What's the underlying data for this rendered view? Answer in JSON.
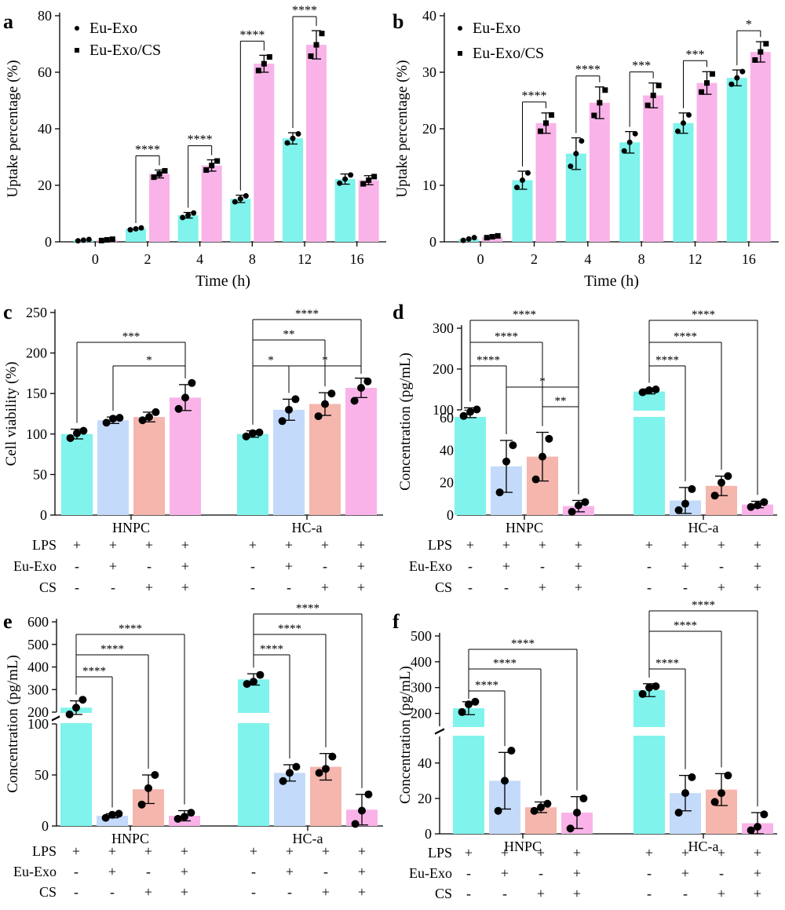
{
  "colors": {
    "cyan": "#7ff3ec",
    "pink": "#f9b3e8",
    "blue": "#c4dafa",
    "salmon": "#f4b6ad"
  },
  "treatment_rows": {
    "labels": [
      "LPS",
      "Eu-Exo",
      "CS"
    ],
    "signs": [
      [
        "+",
        "+",
        "+",
        "+"
      ],
      [
        "-",
        "+",
        "-",
        "+"
      ],
      [
        "-",
        "-",
        "+",
        "+"
      ]
    ]
  },
  "chart_data": [
    {
      "panel": "a",
      "type": "bar",
      "ylabel": "Uptake percentage (%)",
      "xlabel": "Time (h)",
      "ylim": [
        0,
        80
      ],
      "yticks": [
        0,
        20,
        40,
        60,
        80
      ],
      "categories": [
        "0",
        "2",
        "4",
        "8",
        "12",
        "16"
      ],
      "legend": [
        "Eu-Exo",
        "Eu-Exo/CS"
      ],
      "legend_position": "top-left",
      "series": [
        {
          "name": "Eu-Exo",
          "color": "#7ff3ec",
          "values": [
            0.6,
            4.6,
            9.4,
            15.2,
            36.6,
            22.2
          ],
          "err": [
            0.3,
            0.4,
            1.0,
            1.3,
            2.0,
            1.8
          ]
        },
        {
          "name": "Eu-Exo/CS",
          "color": "#f9b3e8",
          "values": [
            0.7,
            24.0,
            27.0,
            63.0,
            69.7,
            21.8
          ],
          "err": [
            0.3,
            1.4,
            2.0,
            3.0,
            5.0,
            1.6
          ]
        }
      ],
      "significance": [
        {
          "a": [
            1,
            0
          ],
          "b": [
            1,
            1
          ],
          "label": "****"
        },
        {
          "a": [
            2,
            0
          ],
          "b": [
            2,
            1
          ],
          "label": "****"
        },
        {
          "a": [
            3,
            0
          ],
          "b": [
            3,
            1
          ],
          "label": "****"
        },
        {
          "a": [
            4,
            0
          ],
          "b": [
            4,
            1
          ],
          "label": "****"
        }
      ]
    },
    {
      "panel": "b",
      "type": "bar",
      "ylabel": "Uptake percentage (%)",
      "xlabel": "Time (h)",
      "ylim": [
        0,
        40
      ],
      "yticks": [
        0,
        10,
        20,
        30,
        40
      ],
      "categories": [
        "0",
        "2",
        "4",
        "8",
        "12",
        "16"
      ],
      "legend": [
        "Eu-Exo",
        "Eu-Exo/CS"
      ],
      "legend_position": "top-left",
      "series": [
        {
          "name": "Eu-Exo",
          "color": "#7ff3ec",
          "values": [
            0.5,
            10.9,
            15.6,
            17.6,
            21.0,
            29.0
          ],
          "err": [
            0.3,
            1.6,
            2.8,
            1.9,
            1.8,
            1.4
          ]
        },
        {
          "name": "Eu-Exo/CS",
          "color": "#f9b3e8",
          "values": [
            0.9,
            21.0,
            24.6,
            25.9,
            28.1,
            33.6
          ],
          "err": [
            0.2,
            1.8,
            2.8,
            2.2,
            2.0,
            1.8
          ]
        }
      ],
      "significance": [
        {
          "a": [
            1,
            0
          ],
          "b": [
            1,
            1
          ],
          "label": "****"
        },
        {
          "a": [
            2,
            0
          ],
          "b": [
            2,
            1
          ],
          "label": "****"
        },
        {
          "a": [
            3,
            0
          ],
          "b": [
            3,
            1
          ],
          "label": "***"
        },
        {
          "a": [
            4,
            0
          ],
          "b": [
            4,
            1
          ],
          "label": "***"
        },
        {
          "a": [
            5,
            0
          ],
          "b": [
            5,
            1
          ],
          "label": "*"
        }
      ]
    },
    {
      "panel": "c",
      "type": "bar",
      "ylabel": "Cell viability (%)",
      "ylim": [
        0,
        250
      ],
      "yticks": [
        0,
        50,
        100,
        150,
        200,
        250
      ],
      "groups": [
        "HNPC",
        "HC-a"
      ],
      "bar_colors": [
        "#7ff3ec",
        "#c4dafa",
        "#f4b6ad",
        "#f9b3e8"
      ],
      "values": [
        [
          100,
          117,
          121,
          145
        ],
        [
          100,
          130,
          137,
          157
        ]
      ],
      "err": [
        [
          6,
          4,
          6,
          16
        ],
        [
          4,
          13,
          14,
          12
        ]
      ],
      "points": [
        [
          [
            95,
            101,
            104
          ],
          [
            114,
            119,
            120
          ],
          [
            117,
            121,
            127
          ],
          [
            131,
            145,
            163
          ]
        ],
        [
          [
            97,
            101,
            102
          ],
          [
            116,
            130,
            143
          ],
          [
            122,
            137,
            150
          ],
          [
            141,
            157,
            165
          ]
        ]
      ],
      "significance": [
        {
          "a": [
            0,
            0
          ],
          "b": [
            0,
            3
          ],
          "label": "***"
        },
        {
          "a": [
            0,
            1
          ],
          "b": [
            0,
            3
          ],
          "label": "*"
        },
        {
          "a": [
            1,
            0
          ],
          "b": [
            1,
            3
          ],
          "label": "****"
        },
        {
          "a": [
            1,
            0
          ],
          "b": [
            1,
            2
          ],
          "label": "**"
        },
        {
          "a": [
            1,
            0
          ],
          "b": [
            1,
            1
          ],
          "label": "*"
        },
        {
          "a": [
            1,
            1
          ],
          "b": [
            1,
            3
          ],
          "label": "*"
        }
      ]
    },
    {
      "panel": "d",
      "type": "bar",
      "ylabel": "Concentration (pg/mL)",
      "broken_axis": true,
      "ylim_low": [
        0,
        60
      ],
      "yticks_low": [
        0,
        20,
        40,
        60
      ],
      "ylim_high": [
        100,
        300
      ],
      "yticks_high": [
        100,
        200,
        300
      ],
      "groups": [
        "HNPC",
        "HC-a"
      ],
      "bar_colors": [
        "#7ff3ec",
        "#c4dafa",
        "#f4b6ad",
        "#f9b3e8"
      ],
      "values": [
        [
          93,
          30,
          36,
          5.5
        ],
        [
          145,
          9,
          18,
          6.5
        ]
      ],
      "err": [
        [
          12,
          16,
          15,
          3.5
        ],
        [
          6,
          8,
          6,
          2
        ]
      ],
      "points": [
        [
          [
            85,
            95,
            101
          ],
          [
            14,
            33,
            43
          ],
          [
            22,
            36,
            47
          ],
          [
            2,
            6,
            8
          ]
        ],
        [
          [
            143,
            148,
            150
          ],
          [
            3,
            7,
            16
          ],
          [
            12,
            20,
            24
          ],
          [
            5,
            6,
            8
          ]
        ]
      ],
      "significance": [
        {
          "a": [
            0,
            0
          ],
          "b": [
            0,
            3
          ],
          "label": "****"
        },
        {
          "a": [
            0,
            0
          ],
          "b": [
            0,
            2
          ],
          "label": "****"
        },
        {
          "a": [
            0,
            0
          ],
          "b": [
            0,
            1
          ],
          "label": "****"
        },
        {
          "a": [
            0,
            1
          ],
          "b": [
            0,
            3
          ],
          "label": "*"
        },
        {
          "a": [
            0,
            2
          ],
          "b": [
            0,
            3
          ],
          "label": "**"
        },
        {
          "a": [
            1,
            0
          ],
          "b": [
            1,
            3
          ],
          "label": "****"
        },
        {
          "a": [
            1,
            0
          ],
          "b": [
            1,
            2
          ],
          "label": "****"
        },
        {
          "a": [
            1,
            0
          ],
          "b": [
            1,
            1
          ],
          "label": "****"
        }
      ]
    },
    {
      "panel": "e",
      "type": "bar",
      "ylabel": "Concentration (pg/mL)",
      "broken_axis": true,
      "ylim_low": [
        0,
        100
      ],
      "yticks_low": [
        0,
        50,
        100
      ],
      "ylim_high": [
        200,
        600
      ],
      "yticks_high": [
        200,
        300,
        400,
        500,
        600
      ],
      "groups": [
        "HNPC",
        "HC-a"
      ],
      "bar_colors": [
        "#7ff3ec",
        "#c4dafa",
        "#f4b6ad",
        "#f9b3e8"
      ],
      "values": [
        [
          220,
          10,
          36,
          10
        ],
        [
          345,
          52,
          58,
          16
        ]
      ],
      "err": [
        [
          30,
          2,
          14,
          5
        ],
        [
          25,
          8,
          13,
          15
        ]
      ],
      "points": [
        [
          [
            190,
            220,
            255
          ],
          [
            8,
            11,
            12
          ],
          [
            21,
            37,
            50
          ],
          [
            7,
            9,
            13
          ]
        ],
        [
          [
            325,
            335,
            365
          ],
          [
            44,
            52,
            58
          ],
          [
            52,
            56,
            68
          ],
          [
            2,
            15,
            31
          ]
        ]
      ],
      "significance": [
        {
          "a": [
            0,
            0
          ],
          "b": [
            0,
            3
          ],
          "label": "****"
        },
        {
          "a": [
            0,
            0
          ],
          "b": [
            0,
            2
          ],
          "label": "****"
        },
        {
          "a": [
            0,
            0
          ],
          "b": [
            0,
            1
          ],
          "label": "****"
        },
        {
          "a": [
            1,
            0
          ],
          "b": [
            1,
            3
          ],
          "label": "****"
        },
        {
          "a": [
            1,
            0
          ],
          "b": [
            1,
            2
          ],
          "label": "****"
        },
        {
          "a": [
            1,
            0
          ],
          "b": [
            1,
            1
          ],
          "label": "****"
        }
      ]
    },
    {
      "panel": "f",
      "type": "bar",
      "ylabel": "Concentration (pg/mL)",
      "broken_axis": true,
      "ylim_low": [
        0,
        55
      ],
      "yticks_low": [
        0,
        20,
        40
      ],
      "ylim_high": [
        150,
        500
      ],
      "yticks_high": [
        200,
        300,
        400,
        500
      ],
      "groups": [
        "HNPC",
        "HC-a"
      ],
      "bar_colors": [
        "#7ff3ec",
        "#c4dafa",
        "#f4b6ad",
        "#f9b3e8"
      ],
      "values": [
        [
          220,
          30,
          15,
          12
        ],
        [
          290,
          23,
          25,
          6
        ]
      ],
      "err": [
        [
          25,
          16,
          3,
          9
        ],
        [
          25,
          10,
          9,
          6
        ]
      ],
      "points": [
        [
          [
            205,
            235,
            245
          ],
          [
            13,
            30,
            47
          ],
          [
            13,
            15,
            17
          ],
          [
            3,
            12,
            20
          ]
        ],
        [
          [
            275,
            300,
            305
          ],
          [
            12,
            23,
            32
          ],
          [
            18,
            23,
            33
          ],
          [
            2,
            4,
            11
          ]
        ]
      ],
      "significance": [
        {
          "a": [
            0,
            0
          ],
          "b": [
            0,
            3
          ],
          "label": "****"
        },
        {
          "a": [
            0,
            0
          ],
          "b": [
            0,
            2
          ],
          "label": "****"
        },
        {
          "a": [
            0,
            0
          ],
          "b": [
            0,
            1
          ],
          "label": "****"
        },
        {
          "a": [
            1,
            0
          ],
          "b": [
            1,
            3
          ],
          "label": "****"
        },
        {
          "a": [
            1,
            0
          ],
          "b": [
            1,
            2
          ],
          "label": "****"
        },
        {
          "a": [
            1,
            0
          ],
          "b": [
            1,
            1
          ],
          "label": "****"
        }
      ]
    }
  ]
}
